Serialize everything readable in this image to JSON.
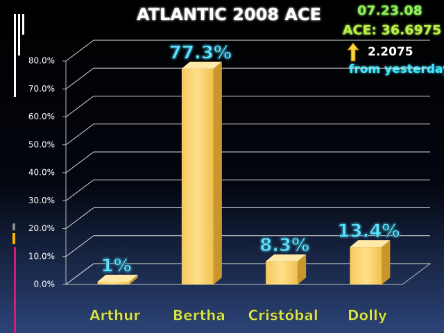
{
  "chart_data": {
    "type": "bar",
    "title": "ATLANTIC 2008 ACE",
    "annotations": [
      "07.23.08",
      "ACE: 36.6975",
      "2.2075",
      "from yesterday"
    ],
    "categories": [
      "Arthur",
      "Bertha",
      "Cristóbal",
      "Dolly"
    ],
    "values": [
      1,
      77.3,
      8.3,
      13.4
    ],
    "value_labels": [
      "1%",
      "77.3%",
      "8.3%",
      "13.4%"
    ],
    "color": "#fcd56a",
    "ylim": [
      0,
      80
    ],
    "yticks": [
      {
        "value": 0,
        "label": "0.0%"
      },
      {
        "value": 10,
        "label": "10.0%"
      },
      {
        "value": 20,
        "label": "20.0%"
      },
      {
        "value": 30,
        "label": "30.0%"
      },
      {
        "value": 40,
        "label": "40.0%"
      },
      {
        "value": 50,
        "label": "50.0%"
      },
      {
        "value": 60,
        "label": "60.0%"
      },
      {
        "value": 70,
        "label": "70.0%"
      },
      {
        "value": 80,
        "label": "80.0%"
      }
    ],
    "grid": true
  }
}
